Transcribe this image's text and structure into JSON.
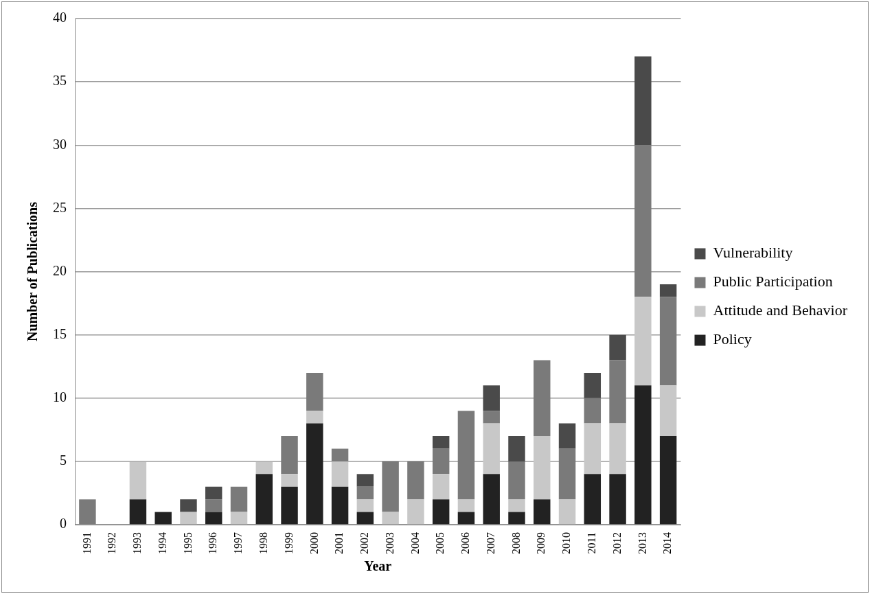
{
  "chart_data": {
    "type": "bar",
    "stacked": true,
    "xlabel": "Year",
    "ylabel": "Number of Publications",
    "categories": [
      "1991",
      "1992",
      "1993",
      "1994",
      "1995",
      "1996",
      "1997",
      "1998",
      "1999",
      "2000",
      "2001",
      "2002",
      "2003",
      "2004",
      "2005",
      "2006",
      "2007",
      "2008",
      "2009",
      "2010",
      "2011",
      "2012",
      "2013",
      "2014"
    ],
    "series": [
      {
        "name": "Policy",
        "color": "#222222",
        "values": [
          0,
          0,
          2,
          1,
          0,
          1,
          0,
          4,
          3,
          8,
          3,
          1,
          0,
          0,
          2,
          1,
          4,
          1,
          2,
          0,
          4,
          4,
          11,
          7
        ]
      },
      {
        "name": "Attitude and Behavior",
        "color": "#c8c8c8",
        "values": [
          0,
          0,
          3,
          0,
          1,
          0,
          1,
          1,
          1,
          1,
          2,
          1,
          1,
          2,
          2,
          1,
          4,
          1,
          5,
          2,
          4,
          4,
          7,
          4
        ]
      },
      {
        "name": "Public Participation",
        "color": "#7a7a7a",
        "values": [
          2,
          0,
          0,
          0,
          0,
          1,
          2,
          0,
          3,
          3,
          1,
          1,
          4,
          3,
          2,
          7,
          1,
          3,
          6,
          4,
          2,
          5,
          12,
          7
        ]
      },
      {
        "name": "Vulnerability",
        "color": "#4a4a4a",
        "values": [
          0,
          0,
          0,
          0,
          1,
          1,
          0,
          0,
          0,
          0,
          0,
          1,
          0,
          0,
          1,
          0,
          2,
          2,
          0,
          2,
          2,
          2,
          7,
          1
        ]
      }
    ],
    "ylim": [
      0,
      40
    ],
    "yticks": [
      0,
      5,
      10,
      15,
      20,
      25,
      30,
      35,
      40
    ],
    "grid": "y",
    "legend": "right"
  }
}
